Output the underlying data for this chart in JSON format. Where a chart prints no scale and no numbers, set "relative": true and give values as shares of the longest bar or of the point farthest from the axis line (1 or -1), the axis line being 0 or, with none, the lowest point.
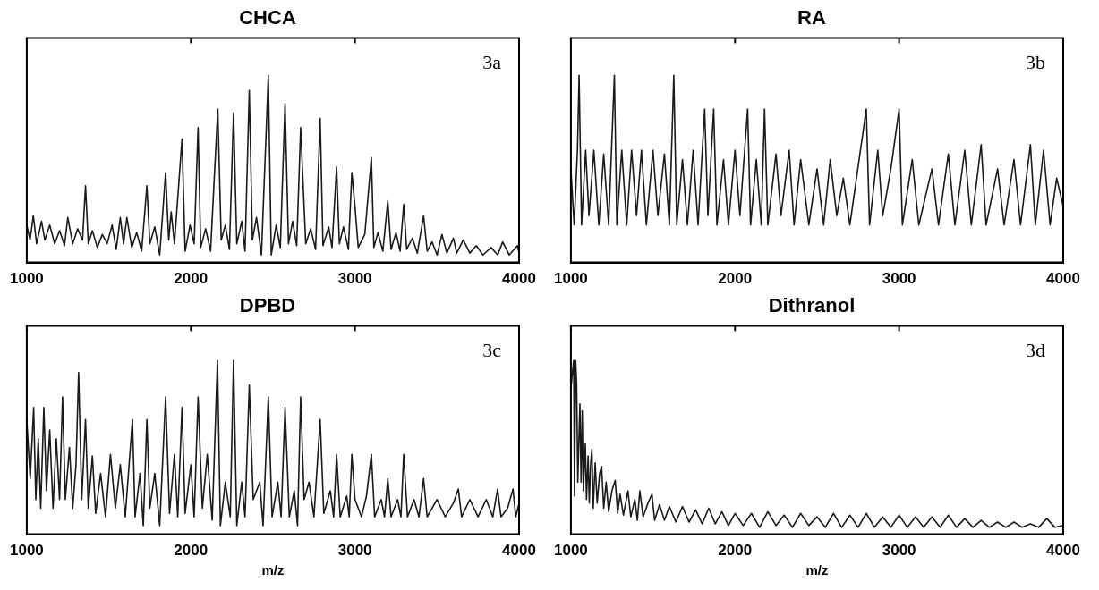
{
  "chart_data": [
    {
      "type": "line",
      "title": "CHCA",
      "annotations": [
        "3a"
      ],
      "relative": true,
      "color": "#1a1a1a",
      "xlim": [
        1000,
        4000
      ],
      "xticks": [
        1000,
        2000,
        3000,
        4000
      ],
      "x": [
        1000,
        1020,
        1040,
        1060,
        1090,
        1110,
        1140,
        1170,
        1200,
        1230,
        1250,
        1280,
        1310,
        1340,
        1358,
        1375,
        1400,
        1430,
        1460,
        1490,
        1520,
        1545,
        1570,
        1590,
        1610,
        1640,
        1670,
        1700,
        1732,
        1750,
        1780,
        1810,
        1846,
        1865,
        1880,
        1900,
        1946,
        1965,
        1995,
        2020,
        2044,
        2060,
        2090,
        2120,
        2164,
        2185,
        2210,
        2235,
        2260,
        2280,
        2310,
        2330,
        2356,
        2375,
        2400,
        2430,
        2472,
        2490,
        2520,
        2545,
        2574,
        2595,
        2620,
        2645,
        2669,
        2680,
        2700,
        2730,
        2760,
        2788,
        2805,
        2840,
        2860,
        2888,
        2905,
        2930,
        2960,
        2981,
        3000,
        3020,
        3060,
        3100,
        3115,
        3140,
        3170,
        3200,
        3220,
        3250,
        3275,
        3297,
        3315,
        3350,
        3380,
        3418,
        3440,
        3470,
        3500,
        3530,
        3560,
        3600,
        3620,
        3660,
        3700,
        3740,
        3780,
        3830,
        3870,
        3900,
        3940,
        3990,
        4000
      ],
      "values": [
        0.2,
        0.12,
        0.25,
        0.1,
        0.22,
        0.12,
        0.2,
        0.1,
        0.17,
        0.09,
        0.24,
        0.1,
        0.18,
        0.12,
        0.41,
        0.1,
        0.17,
        0.08,
        0.15,
        0.1,
        0.2,
        0.07,
        0.24,
        0.1,
        0.24,
        0.08,
        0.16,
        0.06,
        0.41,
        0.1,
        0.19,
        0.04,
        0.48,
        0.12,
        0.27,
        0.1,
        0.66,
        0.06,
        0.2,
        0.1,
        0.72,
        0.08,
        0.18,
        0.06,
        0.82,
        0.12,
        0.2,
        0.07,
        0.8,
        0.1,
        0.22,
        0.06,
        0.92,
        0.12,
        0.24,
        0.04,
        1,
        0.04,
        0.2,
        0.08,
        0.85,
        0.1,
        0.22,
        0.09,
        0.72,
        0.5,
        0.1,
        0.18,
        0.07,
        0.77,
        0.09,
        0.19,
        0.08,
        0.51,
        0.1,
        0.19,
        0.07,
        0.48,
        0.3,
        0.08,
        0.15,
        0.56,
        0.08,
        0.16,
        0.06,
        0.33,
        0.07,
        0.16,
        0.06,
        0.31,
        0.07,
        0.13,
        0.05,
        0.25,
        0.06,
        0.11,
        0.04,
        0.15,
        0.05,
        0.13,
        0.05,
        0.12,
        0.05,
        0.09,
        0.04,
        0.08,
        0.04,
        0.11,
        0.04,
        0.09,
        0.05
      ]
    },
    {
      "type": "line",
      "title": "RA",
      "annotations": [
        "3b"
      ],
      "relative": true,
      "color": "#1a1a1a",
      "xlim": [
        1000,
        4000
      ],
      "xticks": [
        1000,
        2000,
        3000,
        4000
      ],
      "x": [
        1000,
        1020,
        1040,
        1050,
        1065,
        1090,
        1110,
        1140,
        1170,
        1200,
        1230,
        1265,
        1280,
        1310,
        1340,
        1370,
        1400,
        1430,
        1460,
        1500,
        1530,
        1570,
        1600,
        1627,
        1645,
        1680,
        1710,
        1745,
        1775,
        1815,
        1835,
        1870,
        1890,
        1930,
        1960,
        2000,
        2030,
        2077,
        2095,
        2130,
        2160,
        2180,
        2200,
        2250,
        2280,
        2330,
        2360,
        2400,
        2450,
        2500,
        2540,
        2580,
        2620,
        2660,
        2700,
        2800,
        2820,
        2870,
        2900,
        2950,
        3000,
        3020,
        3080,
        3120,
        3200,
        3240,
        3300,
        3340,
        3400,
        3440,
        3500,
        3530,
        3600,
        3640,
        3700,
        3740,
        3800,
        3830,
        3880,
        3920,
        3960,
        4000
      ],
      "values": [
        0.5,
        0.2,
        0.6,
        1,
        0.2,
        0.6,
        0.25,
        0.6,
        0.2,
        0.58,
        0.2,
        1,
        0.2,
        0.6,
        0.2,
        0.6,
        0.25,
        0.6,
        0.2,
        0.6,
        0.25,
        0.58,
        0.2,
        1,
        0.2,
        0.55,
        0.2,
        0.6,
        0.2,
        0.82,
        0.25,
        0.82,
        0.2,
        0.55,
        0.2,
        0.6,
        0.25,
        0.82,
        0.2,
        0.55,
        0.2,
        0.82,
        0.2,
        0.58,
        0.25,
        0.6,
        0.2,
        0.55,
        0.2,
        0.5,
        0.2,
        0.55,
        0.25,
        0.45,
        0.2,
        0.82,
        0.2,
        0.6,
        0.25,
        0.5,
        0.82,
        0.2,
        0.55,
        0.2,
        0.5,
        0.2,
        0.58,
        0.2,
        0.6,
        0.2,
        0.63,
        0.2,
        0.5,
        0.2,
        0.55,
        0.2,
        0.63,
        0.2,
        0.6,
        0.2,
        0.45,
        0.3
      ]
    },
    {
      "type": "line",
      "title": "DPBD",
      "annotations": [
        "3c"
      ],
      "xlabel": "m/z",
      "relative": true,
      "color": "#1a1a1a",
      "xlim": [
        1000,
        4000
      ],
      "xticks": [
        1000,
        2000,
        3000,
        4000
      ],
      "x": [
        1000,
        1021,
        1042,
        1055,
        1070,
        1085,
        1104,
        1120,
        1140,
        1160,
        1180,
        1200,
        1218,
        1235,
        1260,
        1280,
        1300,
        1316,
        1335,
        1358,
        1375,
        1400,
        1420,
        1450,
        1480,
        1510,
        1540,
        1570,
        1600,
        1644,
        1660,
        1690,
        1710,
        1732,
        1750,
        1780,
        1810,
        1846,
        1870,
        1900,
        1920,
        1946,
        1965,
        2000,
        2020,
        2044,
        2070,
        2100,
        2130,
        2162,
        2180,
        2210,
        2240,
        2260,
        2280,
        2310,
        2330,
        2356,
        2380,
        2420,
        2440,
        2472,
        2495,
        2530,
        2550,
        2574,
        2600,
        2630,
        2650,
        2669,
        2690,
        2720,
        2750,
        2788,
        2810,
        2850,
        2870,
        2888,
        2910,
        2950,
        2965,
        2981,
        3000,
        3040,
        3070,
        3100,
        3120,
        3160,
        3180,
        3200,
        3220,
        3260,
        3280,
        3297,
        3320,
        3360,
        3390,
        3418,
        3440,
        3500,
        3550,
        3600,
        3630,
        3650,
        3700,
        3750,
        3800,
        3840,
        3869,
        3890,
        3930,
        3963,
        3980,
        4000
      ],
      "values": [
        0.66,
        0.32,
        0.73,
        0.2,
        0.55,
        0.15,
        0.73,
        0.25,
        0.6,
        0.15,
        0.55,
        0.2,
        0.79,
        0.2,
        0.5,
        0.15,
        0.4,
        0.93,
        0.2,
        0.66,
        0.15,
        0.45,
        0.12,
        0.35,
        0.1,
        0.46,
        0.15,
        0.4,
        0.1,
        0.66,
        0.1,
        0.35,
        0.05,
        0.66,
        0.15,
        0.35,
        0.05,
        0.79,
        0.12,
        0.46,
        0.1,
        0.73,
        0.12,
        0.4,
        0.1,
        0.79,
        0.15,
        0.46,
        0.08,
        1,
        0.05,
        0.3,
        0.1,
        1,
        0.05,
        0.3,
        0.1,
        0.86,
        0.2,
        0.3,
        0.05,
        0.79,
        0.1,
        0.3,
        0.1,
        0.73,
        0.1,
        0.25,
        0.05,
        0.79,
        0.2,
        0.3,
        0.1,
        0.66,
        0.12,
        0.25,
        0.1,
        0.46,
        0.1,
        0.22,
        0.1,
        0.46,
        0.2,
        0.1,
        0.22,
        0.46,
        0.1,
        0.2,
        0.1,
        0.32,
        0.1,
        0.2,
        0.1,
        0.46,
        0.1,
        0.2,
        0.1,
        0.32,
        0.1,
        0.2,
        0.1,
        0.18,
        0.26,
        0.1,
        0.2,
        0.1,
        0.2,
        0.1,
        0.26,
        0.1,
        0.15,
        0.26,
        0.1,
        0.18
      ]
    },
    {
      "type": "line",
      "title": "Dithranol",
      "annotations": [
        "3d"
      ],
      "xlabel": "m/z",
      "relative": true,
      "color": "#1a1a1a",
      "xlim": [
        1000,
        4000
      ],
      "xticks": [
        1000,
        2000,
        3000,
        4000
      ],
      "x": [
        1000,
        1017,
        1022,
        1029,
        1035,
        1042,
        1055,
        1062,
        1069,
        1076,
        1088,
        1095,
        1105,
        1112,
        1120,
        1128,
        1136,
        1148,
        1160,
        1175,
        1187,
        1200,
        1215,
        1230,
        1250,
        1270,
        1285,
        1300,
        1320,
        1348,
        1365,
        1390,
        1405,
        1420,
        1440,
        1470,
        1494,
        1510,
        1540,
        1570,
        1600,
        1640,
        1680,
        1720,
        1760,
        1800,
        1840,
        1880,
        1920,
        1960,
        2000,
        2050,
        2100,
        2150,
        2200,
        2250,
        2300,
        2350,
        2400,
        2450,
        2500,
        2550,
        2600,
        2650,
        2700,
        2750,
        2800,
        2850,
        2900,
        2950,
        3000,
        3050,
        3100,
        3150,
        3200,
        3250,
        3300,
        3350,
        3400,
        3450,
        3500,
        3550,
        3600,
        3650,
        3700,
        3750,
        3800,
        3850,
        3900,
        3950,
        4000
      ],
      "values": [
        0.84,
        1,
        0.22,
        1,
        0.87,
        0.3,
        0.75,
        0.3,
        0.71,
        0.25,
        0.52,
        0.2,
        0.45,
        0.18,
        0.4,
        0.49,
        0.15,
        0.41,
        0.18,
        0.35,
        0.39,
        0.15,
        0.3,
        0.13,
        0.25,
        0.31,
        0.12,
        0.23,
        0.11,
        0.25,
        0.1,
        0.2,
        0.08,
        0.25,
        0.1,
        0.18,
        0.23,
        0.08,
        0.17,
        0.08,
        0.16,
        0.07,
        0.16,
        0.07,
        0.14,
        0.06,
        0.15,
        0.06,
        0.13,
        0.05,
        0.12,
        0.05,
        0.12,
        0.04,
        0.13,
        0.05,
        0.11,
        0.04,
        0.12,
        0.05,
        0.1,
        0.04,
        0.12,
        0.04,
        0.11,
        0.04,
        0.12,
        0.04,
        0.1,
        0.04,
        0.11,
        0.04,
        0.1,
        0.04,
        0.1,
        0.04,
        0.11,
        0.04,
        0.09,
        0.04,
        0.08,
        0.04,
        0.07,
        0.04,
        0.07,
        0.04,
        0.06,
        0.04,
        0.09,
        0.04,
        0.05
      ]
    }
  ]
}
